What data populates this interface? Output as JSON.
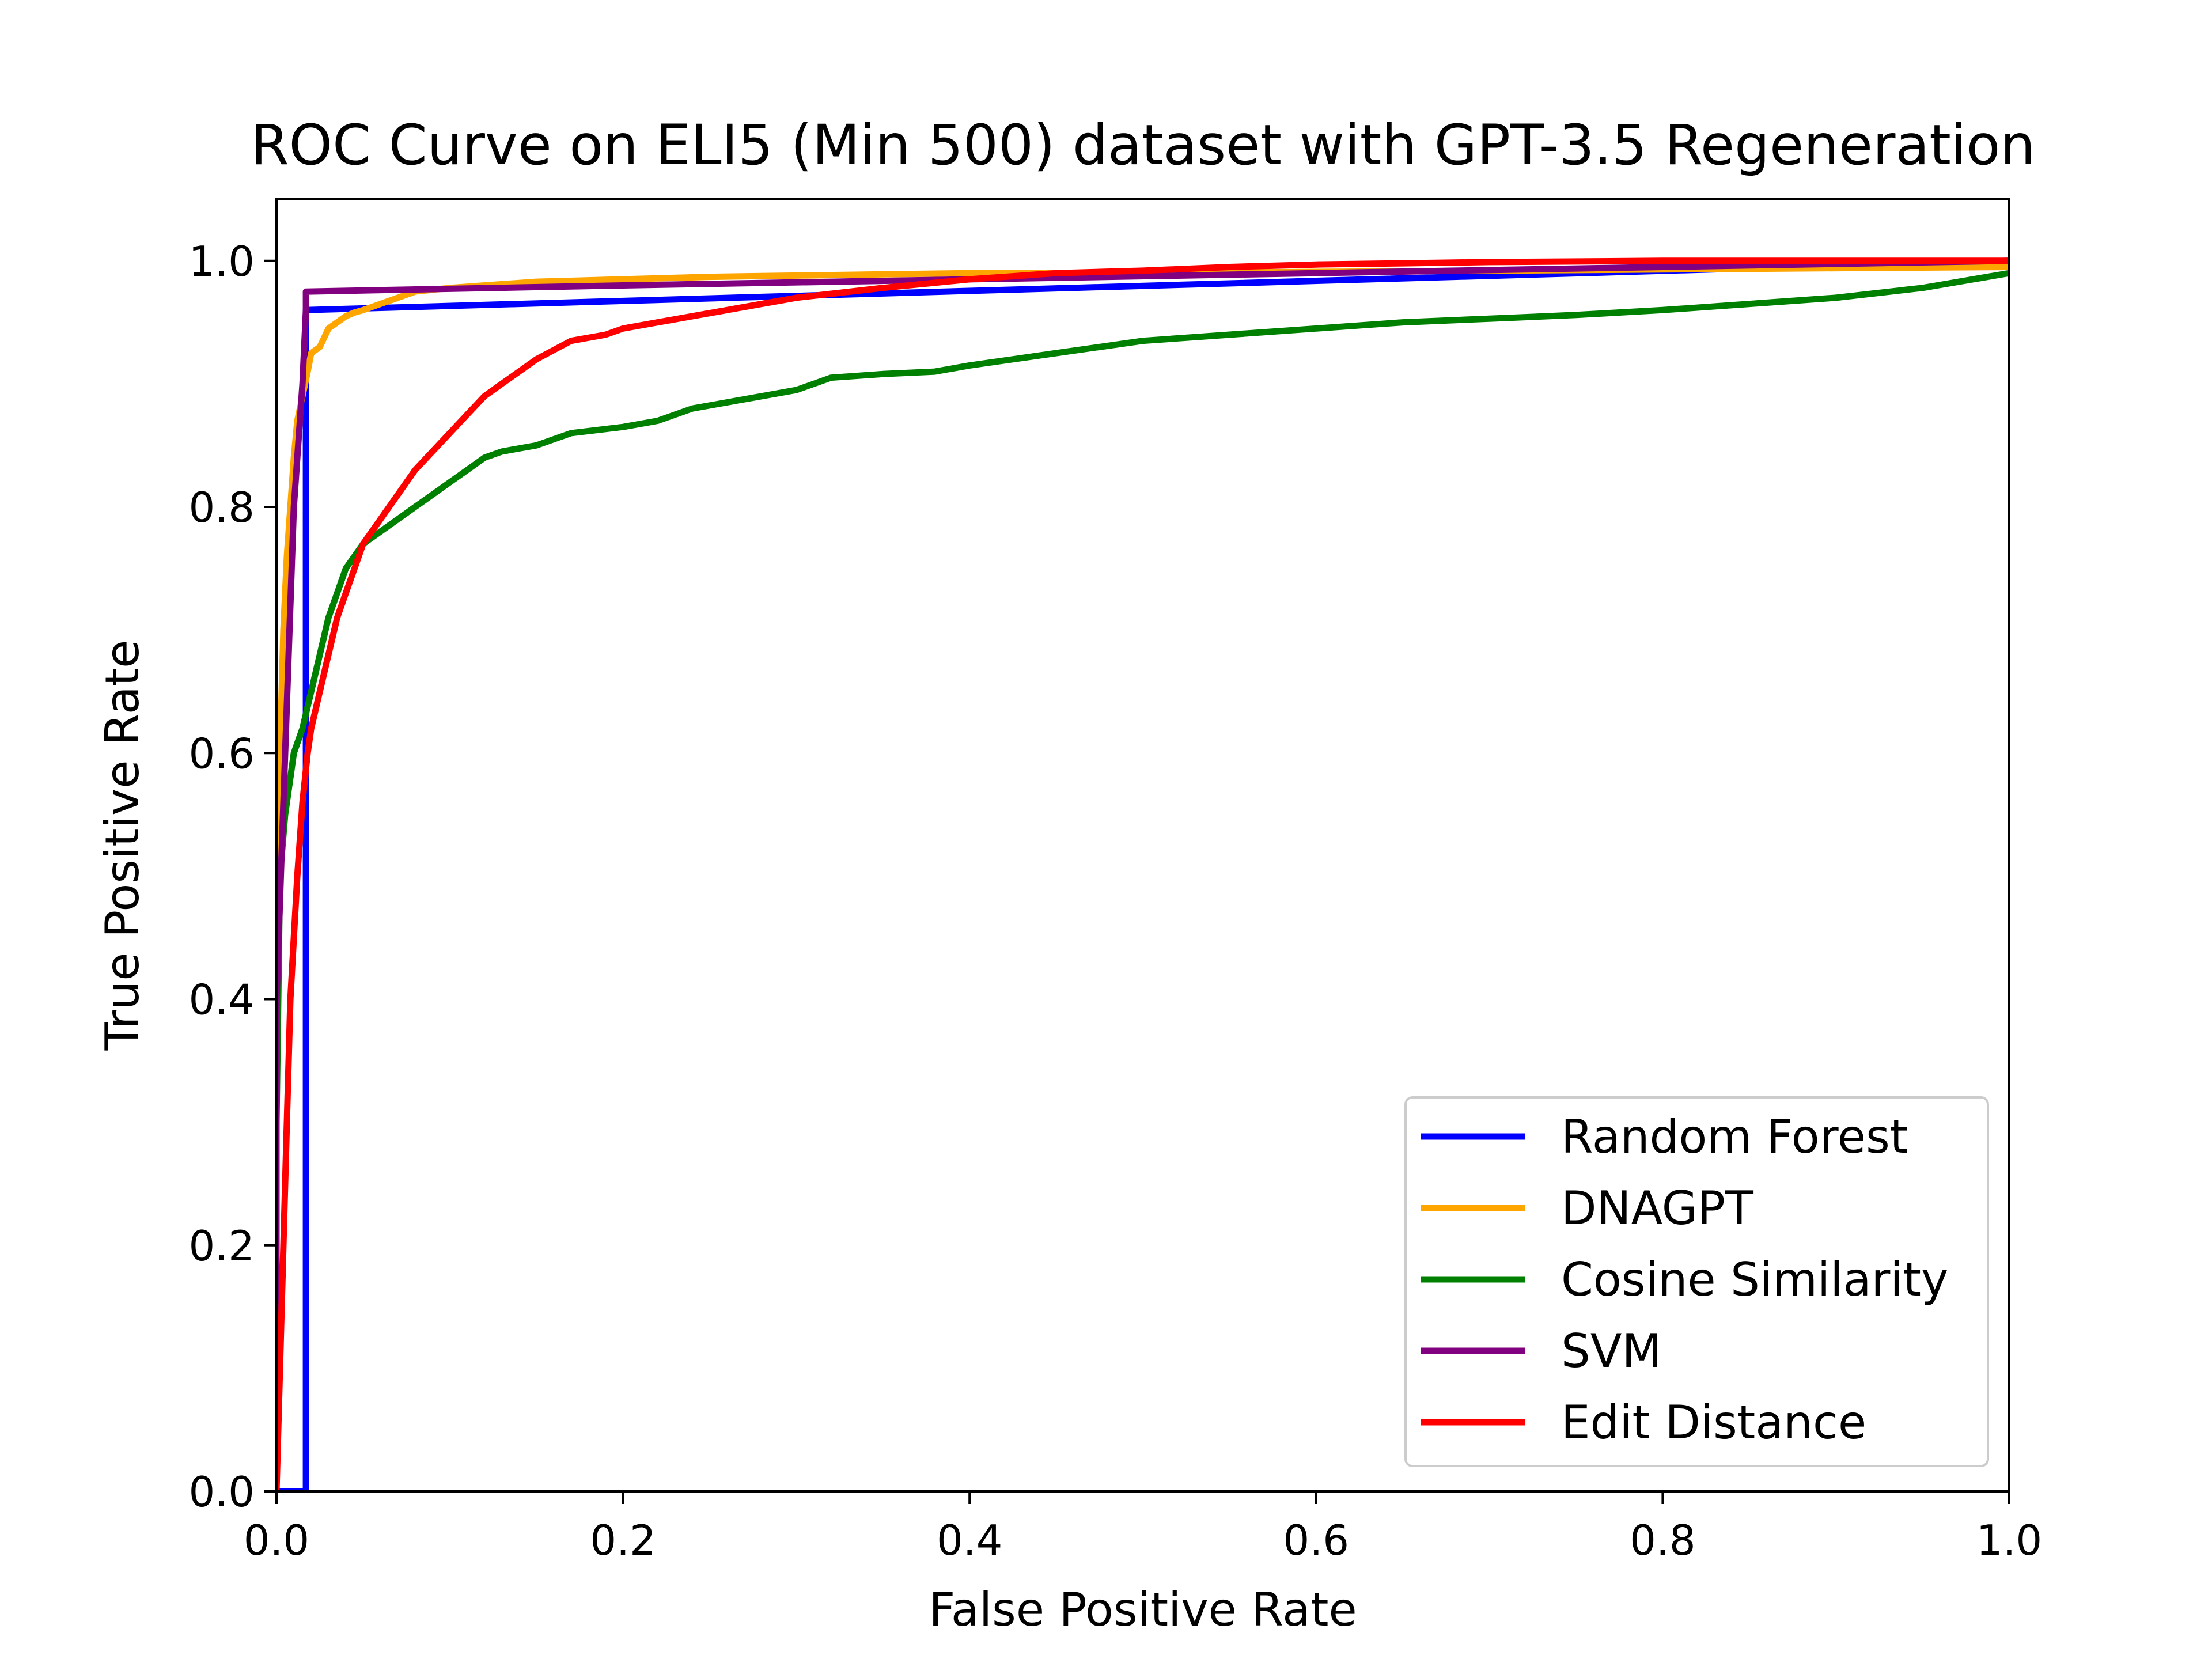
{
  "chart_data": {
    "type": "line",
    "title": "ROC Curve on ELI5 (Min 500) dataset with GPT-3.5 Regeneration",
    "xlabel": "False Positive Rate",
    "ylabel": "True Positive Rate",
    "xlim": [
      0,
      1
    ],
    "ylim": [
      0,
      1.05
    ],
    "xticks": [
      0.0,
      0.2,
      0.4,
      0.6,
      0.8,
      1.0
    ],
    "yticks": [
      0.0,
      0.2,
      0.4,
      0.6,
      0.8,
      1.0
    ],
    "xtick_labels": [
      "0.0",
      "0.2",
      "0.4",
      "0.6",
      "0.8",
      "1.0"
    ],
    "ytick_labels": [
      "0.0",
      "0.2",
      "0.4",
      "0.6",
      "0.8",
      "1.0"
    ],
    "grid": false,
    "legend_position": "lower-right",
    "series": [
      {
        "name": "Random Forest",
        "color": "#0000ff",
        "x": [
          0,
          0.017,
          0.017,
          1.0
        ],
        "y": [
          0,
          0.0,
          0.96,
          1.0
        ]
      },
      {
        "name": "DNAGPT",
        "color": "#ffa500",
        "x": [
          0,
          0.0,
          0.002,
          0.004,
          0.006,
          0.008,
          0.01,
          0.012,
          0.015,
          0.018,
          0.02,
          0.025,
          0.03,
          0.035,
          0.04,
          0.045,
          0.05,
          0.06,
          0.07,
          0.08,
          0.1,
          0.12,
          0.15,
          0.2,
          0.25,
          0.3,
          0.35,
          0.4,
          0.5,
          0.6,
          0.7,
          0.8,
          0.9,
          1.0
        ],
        "y": [
          0,
          0.5,
          0.6,
          0.7,
          0.76,
          0.8,
          0.84,
          0.87,
          0.89,
          0.91,
          0.925,
          0.93,
          0.945,
          0.95,
          0.955,
          0.958,
          0.96,
          0.965,
          0.97,
          0.975,
          0.978,
          0.98,
          0.983,
          0.985,
          0.987,
          0.988,
          0.989,
          0.99,
          0.99,
          0.991,
          0.992,
          0.993,
          0.994,
          0.995
        ]
      },
      {
        "name": "Cosine Similarity",
        "color": "#008000",
        "x": [
          0,
          0.0,
          0.002,
          0.005,
          0.008,
          0.01,
          0.015,
          0.02,
          0.025,
          0.03,
          0.035,
          0.04,
          0.045,
          0.05,
          0.06,
          0.07,
          0.08,
          0.09,
          0.1,
          0.11,
          0.12,
          0.13,
          0.15,
          0.17,
          0.2,
          0.22,
          0.24,
          0.26,
          0.28,
          0.3,
          0.32,
          0.35,
          0.38,
          0.4,
          0.45,
          0.5,
          0.55,
          0.6,
          0.65,
          0.7,
          0.75,
          0.8,
          0.85,
          0.9,
          0.95,
          1.0
        ],
        "y": [
          0,
          0.3,
          0.5,
          0.55,
          0.58,
          0.6,
          0.62,
          0.65,
          0.68,
          0.71,
          0.73,
          0.75,
          0.76,
          0.77,
          0.78,
          0.79,
          0.8,
          0.81,
          0.82,
          0.83,
          0.84,
          0.845,
          0.85,
          0.86,
          0.865,
          0.87,
          0.88,
          0.885,
          0.89,
          0.895,
          0.905,
          0.908,
          0.91,
          0.915,
          0.925,
          0.935,
          0.94,
          0.945,
          0.95,
          0.953,
          0.956,
          0.96,
          0.965,
          0.97,
          0.978,
          0.99
        ]
      },
      {
        "name": "SVM",
        "color": "#800080",
        "x": [
          0,
          0.0,
          0.005,
          0.01,
          0.015,
          0.017,
          0.017,
          0.2,
          0.4,
          0.6,
          0.8,
          1.0
        ],
        "y": [
          0,
          0.4,
          0.6,
          0.8,
          0.9,
          0.96,
          0.975,
          0.98,
          0.985,
          0.99,
          0.995,
          1.0
        ]
      },
      {
        "name": "Edit Distance",
        "color": "#ff0000",
        "x": [
          0,
          0.002,
          0.004,
          0.006,
          0.008,
          0.01,
          0.012,
          0.015,
          0.018,
          0.02,
          0.025,
          0.03,
          0.035,
          0.04,
          0.045,
          0.05,
          0.06,
          0.07,
          0.08,
          0.09,
          0.1,
          0.11,
          0.12,
          0.13,
          0.14,
          0.15,
          0.17,
          0.19,
          0.2,
          0.22,
          0.24,
          0.26,
          0.28,
          0.3,
          0.35,
          0.4,
          0.45,
          0.5,
          0.55,
          0.6,
          0.65,
          0.7,
          0.8,
          0.9,
          1.0
        ],
        "y": [
          0,
          0.1,
          0.2,
          0.3,
          0.4,
          0.45,
          0.5,
          0.56,
          0.6,
          0.62,
          0.65,
          0.68,
          0.71,
          0.73,
          0.75,
          0.77,
          0.79,
          0.81,
          0.83,
          0.845,
          0.86,
          0.875,
          0.89,
          0.9,
          0.91,
          0.92,
          0.935,
          0.94,
          0.945,
          0.95,
          0.955,
          0.96,
          0.965,
          0.97,
          0.978,
          0.985,
          0.99,
          0.992,
          0.995,
          0.997,
          0.998,
          0.999,
          1.0,
          1.0,
          1.0
        ]
      }
    ]
  }
}
